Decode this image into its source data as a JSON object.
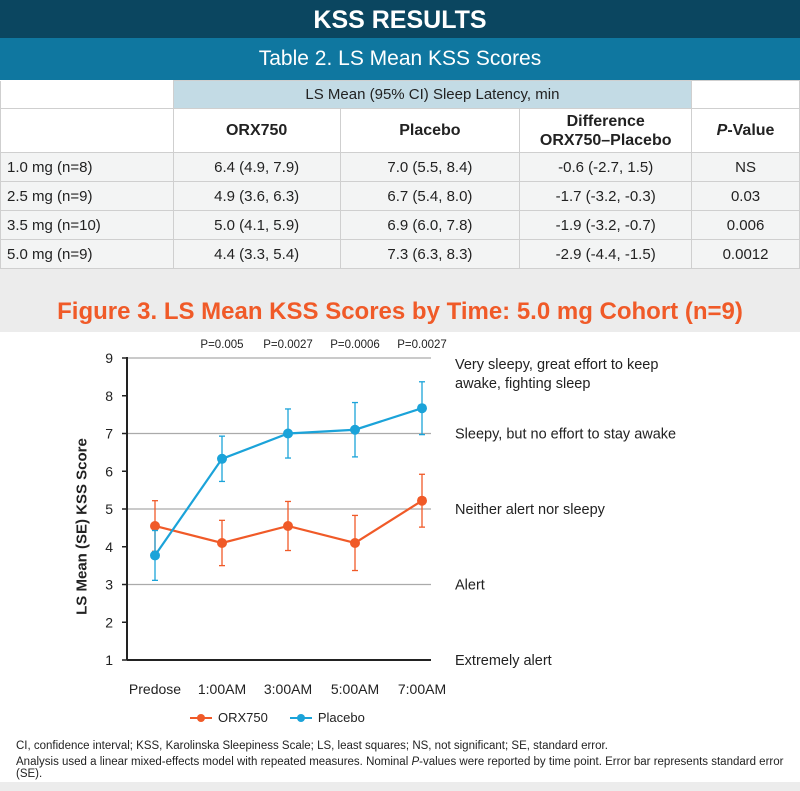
{
  "header": {
    "title": "KSS RESULTS",
    "table_title": "Table 2. LS Mean KSS Scores"
  },
  "table": {
    "group_header": "LS Mean (95% CI) Sleep Latency, min",
    "columns": [
      "ORX750",
      "Placebo",
      "Difference ORX750–Placebo",
      "P-Value"
    ],
    "col_diff_line1": "Difference",
    "col_diff_line2": "ORX750–Placebo",
    "col_p_italic": "P",
    "col_p_rest": "-Value",
    "rows": [
      [
        "1.0 mg (n=8)",
        "6.4 (4.9, 7.9)",
        "7.0 (5.5, 8.4)",
        "-0.6 (-2.7, 1.5)",
        "NS"
      ],
      [
        "2.5 mg (n=9)",
        "4.9 (3.6, 6.3)",
        "6.7 (5.4, 8.0)",
        "-1.7 (-3.2, -0.3)",
        "0.03"
      ],
      [
        "3.5 mg (n=10)",
        "5.0 (4.1, 5.9)",
        "6.9 (6.0, 7.8)",
        "-1.9 (-3.2, -0.7)",
        "0.006"
      ],
      [
        "5.0 mg (n=9)",
        "4.4 (3.3, 5.4)",
        "7.3 (6.3, 8.3)",
        "-2.9 (-4.4, -1.5)",
        "0.0012"
      ]
    ]
  },
  "chart_data": {
    "type": "line",
    "title": "Figure 3. LS Mean KSS Scores by Time: 5.0 mg Cohort (n=9)",
    "ylabel": "LS Mean (SE) KSS Score",
    "xlabel": "",
    "categories": [
      "Predose",
      "1:00AM",
      "3:00AM",
      "5:00AM",
      "7:00AM"
    ],
    "ylim": [
      1,
      9
    ],
    "yticks": [
      1,
      2,
      3,
      4,
      5,
      6,
      7,
      8,
      9
    ],
    "gridlines_at": [
      3,
      5,
      7,
      9
    ],
    "legend_position": "bottom",
    "series": [
      {
        "name": "ORX750",
        "color": "#f05a28",
        "values": [
          4.55,
          4.1,
          4.55,
          4.1,
          5.22
        ],
        "se": [
          0.67,
          0.6,
          0.65,
          0.73,
          0.7
        ]
      },
      {
        "name": "Placebo",
        "color": "#1ba3d9",
        "values": [
          3.77,
          6.33,
          7.0,
          7.1,
          7.67
        ],
        "se": [
          0.66,
          0.6,
          0.65,
          0.72,
          0.7
        ]
      }
    ],
    "p_values": [
      "",
      "P=0.005",
      "P=0.0027",
      "P=0.0006",
      "P=0.0027"
    ],
    "annotations": [
      {
        "y": 8.5,
        "lines": [
          "Very sleepy, great effort to keep",
          "awake, fighting sleep"
        ]
      },
      {
        "y": 7,
        "lines": [
          "Sleepy, but no effort to stay awake"
        ]
      },
      {
        "y": 5,
        "lines": [
          "Neither alert nor sleepy"
        ]
      },
      {
        "y": 3,
        "lines": [
          "Alert"
        ]
      },
      {
        "y": 1,
        "lines": [
          "Extremely alert"
        ]
      }
    ]
  },
  "footnotes": {
    "line1": "CI, confidence interval; KSS, Karolinska Sleepiness Scale; LS, least squares; NS, not significant; SE, standard error.",
    "line2_a": "Analysis used a linear mixed-effects model with repeated measures. Nominal ",
    "line2_p": "P",
    "line2_b": "-values were reported by time point. Error bar represents standard error (SE)."
  }
}
